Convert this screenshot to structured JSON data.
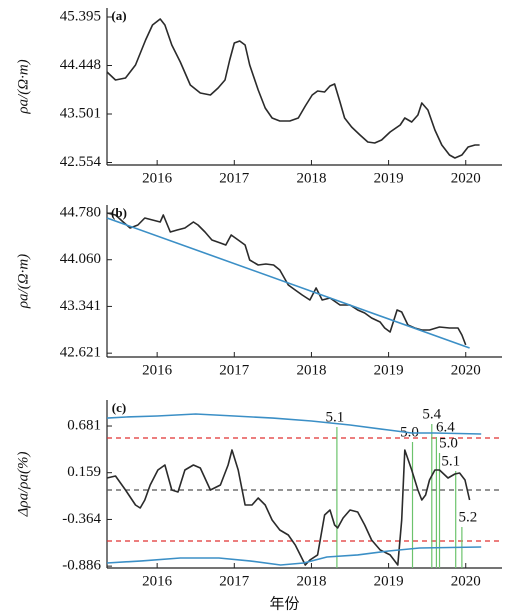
{
  "chart_data": [
    {
      "type": "line",
      "panel_label": "(a)",
      "ylabel": "ρa/(Ω·m)",
      "xlim": [
        2015.35,
        2020.47
      ],
      "xticks": [
        2016,
        2017,
        2018,
        2019,
        2020
      ],
      "ylim": [
        42.505,
        45.571
      ],
      "yticks": [
        45.395,
        44.448,
        43.501,
        42.554
      ],
      "series": [
        {
          "color": "#2b2b2b",
          "x": [
            2015.35,
            2015.46,
            2015.59,
            2015.72,
            2015.85,
            2015.94,
            2016.04,
            2016.1,
            2016.19,
            2016.3,
            2016.43,
            2016.56,
            2016.69,
            2016.79,
            2016.88,
            2016.94,
            2017.0,
            2017.07,
            2017.14,
            2017.2,
            2017.31,
            2017.4,
            2017.49,
            2017.59,
            2017.72,
            2017.83,
            2017.92,
            2018.01,
            2018.08,
            2018.17,
            2018.24,
            2018.3,
            2018.37,
            2018.43,
            2018.52,
            2018.63,
            2018.73,
            2018.82,
            2018.91,
            2019.02,
            2019.15,
            2019.21,
            2019.3,
            2019.38,
            2019.43,
            2019.51,
            2019.6,
            2019.69,
            2019.79,
            2019.86,
            2019.95,
            2020.03,
            2020.12,
            2020.18
          ],
          "values": [
            44.321,
            44.165,
            44.204,
            44.458,
            44.946,
            45.239,
            45.356,
            45.239,
            44.848,
            44.516,
            44.067,
            43.911,
            43.872,
            44.009,
            44.165,
            44.555,
            44.887,
            44.926,
            44.848,
            44.458,
            43.97,
            43.618,
            43.423,
            43.364,
            43.364,
            43.423,
            43.657,
            43.872,
            43.95,
            43.931,
            44.048,
            44.087,
            43.735,
            43.423,
            43.247,
            43.091,
            42.954,
            42.935,
            42.993,
            43.149,
            43.286,
            43.423,
            43.345,
            43.481,
            43.716,
            43.579,
            43.188,
            42.896,
            42.7,
            42.642,
            42.7,
            42.857,
            42.896,
            42.896
          ]
        }
      ]
    },
    {
      "type": "line",
      "panel_label": "(b)",
      "ylabel": "ρa/(Ω·m)",
      "xlim": [
        2015.35,
        2020.47
      ],
      "xticks": [
        2016,
        2017,
        2018,
        2019,
        2020
      ],
      "ylim": [
        42.562,
        44.903
      ],
      "yticks": [
        {
          "value": 44.78,
          "label": "44.780"
        },
        {
          "value": 44.06,
          "label": "44.060"
        },
        43.341,
        42.621
      ],
      "series": [
        {
          "color": "#2b2b2b",
          "x": [
            2015.35,
            2015.46,
            2015.56,
            2015.65,
            2015.75,
            2015.84,
            2015.94,
            2016.04,
            2016.08,
            2016.17,
            2016.26,
            2016.36,
            2016.47,
            2016.53,
            2016.62,
            2016.71,
            2016.82,
            2016.89,
            2016.96,
            2017.05,
            2017.14,
            2017.2,
            2017.31,
            2017.41,
            2017.51,
            2017.59,
            2017.7,
            2017.79,
            2017.88,
            2017.98,
            2018.06,
            2018.14,
            2018.24,
            2018.37,
            2018.5,
            2018.6,
            2018.69,
            2018.78,
            2018.89,
            2018.95,
            2019.02,
            2019.11,
            2019.17,
            2019.25,
            2019.34,
            2019.43,
            2019.53,
            2019.66,
            2019.79,
            2019.9,
            2019.95,
            2020.0
          ],
          "values": [
            44.78,
            44.749,
            44.641,
            44.549,
            44.595,
            44.703,
            44.672,
            44.641,
            44.749,
            44.487,
            44.518,
            44.549,
            44.641,
            44.595,
            44.487,
            44.364,
            44.318,
            44.287,
            44.441,
            44.364,
            44.287,
            44.056,
            43.979,
            43.995,
            43.979,
            43.902,
            43.671,
            43.594,
            43.517,
            43.44,
            43.625,
            43.44,
            43.471,
            43.363,
            43.363,
            43.286,
            43.24,
            43.163,
            43.101,
            43.009,
            42.947,
            43.286,
            43.255,
            43.055,
            43.009,
            42.978,
            42.978,
            43.024,
            43.009,
            43.009,
            42.901,
            42.748
          ]
        },
        {
          "color": "#3b8fc6",
          "x": [
            2015.35,
            2020.05
          ],
          "values": [
            44.703,
            42.701
          ]
        }
      ]
    },
    {
      "type": "line",
      "panel_label": "(c)",
      "ylabel": "Δρa/ρa(%)",
      "xlabel": "年份",
      "xlim": [
        2015.35,
        2020.47
      ],
      "xticks": [
        2016,
        2017,
        2018,
        2019,
        2020
      ],
      "ylim": [
        -0.907,
        0.972
      ],
      "yticks": [
        0.681,
        0.159,
        -0.364,
        -0.886
      ],
      "hlines": [
        {
          "value": 0.547,
          "color": "#e03030"
        },
        {
          "value": -0.605,
          "color": "#e03030"
        },
        {
          "value": -0.035,
          "color": "#555555"
        }
      ],
      "events": [
        {
          "x": 2018.33,
          "label": "5.1"
        },
        {
          "x": 2019.31,
          "label": "5.0"
        },
        {
          "x": 2019.56,
          "label": "5.4"
        },
        {
          "x": 2019.62,
          "label": "6.4"
        },
        {
          "x": 2019.66,
          "label": "5.0"
        },
        {
          "x": 2019.87,
          "label": "5.1"
        },
        {
          "x": 2019.95,
          "label": "5.2"
        }
      ],
      "event_color": "#6cc36c",
      "series": [
        {
          "color": "#2b2b2b",
          "x": [
            2015.35,
            2015.46,
            2015.59,
            2015.72,
            2015.78,
            2015.84,
            2015.91,
            2016.01,
            2016.1,
            2016.19,
            2016.27,
            2016.36,
            2016.47,
            2016.56,
            2016.69,
            2016.82,
            2016.92,
            2016.97,
            2017.05,
            2017.14,
            2017.23,
            2017.31,
            2017.4,
            2017.49,
            2017.59,
            2017.7,
            2017.79,
            2017.92,
            2017.98,
            2018.08,
            2018.17,
            2018.24,
            2018.3,
            2018.34,
            2018.41,
            2018.5,
            2018.6,
            2018.69,
            2018.78,
            2018.89,
            2019.02,
            2019.12,
            2019.17,
            2019.21,
            2019.3,
            2019.38,
            2019.43,
            2019.48,
            2019.53,
            2019.6,
            2019.66,
            2019.77,
            2019.86,
            2019.92,
            2019.99,
            2020.05
          ],
          "values": [
            0.1,
            0.122,
            -0.035,
            -0.202,
            -0.236,
            -0.146,
            0.021,
            0.189,
            0.245,
            -0.035,
            -0.057,
            0.189,
            0.245,
            0.211,
            -0.035,
            0.021,
            0.245,
            0.413,
            0.189,
            -0.202,
            -0.202,
            -0.124,
            -0.202,
            -0.37,
            -0.482,
            -0.538,
            -0.649,
            -0.873,
            -0.817,
            -0.761,
            -0.314,
            -0.258,
            -0.426,
            -0.459,
            -0.348,
            -0.258,
            -0.281,
            -0.426,
            -0.594,
            -0.705,
            -0.761,
            -0.873,
            -0.37,
            0.413,
            0.189,
            -0.035,
            -0.146,
            -0.09,
            0.077,
            0.189,
            0.189,
            0.1,
            0.144,
            0.155,
            0.077,
            -0.146
          ]
        },
        {
          "color": "#3b8fc6",
          "x": [
            2015.35,
            2015.6,
            2016.0,
            2016.5,
            2017.0,
            2017.5,
            2018.0,
            2018.5,
            2019.0,
            2019.3,
            2019.6,
            2020.2
          ],
          "values": [
            0.77,
            0.782,
            0.793,
            0.815,
            0.793,
            0.77,
            0.737,
            0.692,
            0.636,
            0.603,
            0.603,
            0.592
          ]
        },
        {
          "color": "#3b8fc6",
          "x": [
            2015.35,
            2015.8,
            2016.3,
            2016.8,
            2017.2,
            2017.6,
            2017.9,
            2018.2,
            2018.6,
            2019.0,
            2019.4,
            2020.2
          ],
          "values": [
            -0.851,
            -0.828,
            -0.795,
            -0.795,
            -0.828,
            -0.873,
            -0.851,
            -0.784,
            -0.761,
            -0.717,
            -0.683,
            -0.672
          ]
        }
      ]
    }
  ]
}
